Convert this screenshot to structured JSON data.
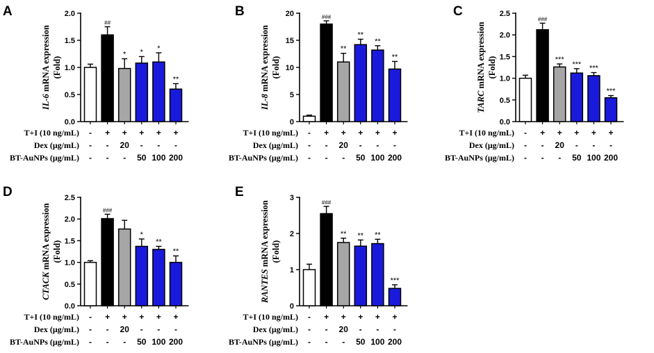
{
  "colors": {
    "control": "#ffffff",
    "model": "#000000",
    "dex": "#a6a6a6",
    "treatment": "#1a1adc",
    "axis": "#000000"
  },
  "treatment_row_labels": [
    "T+I (10 ng/mL)",
    "Dex (μg/mL)",
    "BT-AuNPs (μg/mL)"
  ],
  "treatment_table": [
    [
      "-",
      "+",
      "+",
      "+",
      "+",
      "+"
    ],
    [
      "-",
      "-",
      "20",
      "-",
      "-",
      "-"
    ],
    [
      "-",
      "-",
      "-",
      "50",
      "100",
      "200"
    ]
  ],
  "chart_data": [
    {
      "type": "bar",
      "panel": "A",
      "title": "",
      "ylabel_gene": "IL-6",
      "ylabel_rest": " mRNA expression",
      "ylabel_unit": "(Fold)",
      "ylim": [
        0,
        2.0
      ],
      "yticks": [
        "0.0",
        "0.5",
        "1.0",
        "1.5",
        "2.0"
      ],
      "values": [
        1.0,
        1.6,
        0.98,
        1.08,
        1.1,
        0.6
      ],
      "errors": [
        0.06,
        0.15,
        0.18,
        0.12,
        0.17,
        0.1
      ],
      "annotations": [
        "",
        "##",
        "*",
        "*",
        "*",
        "**"
      ]
    },
    {
      "type": "bar",
      "panel": "B",
      "title": "",
      "ylabel_gene": "IL-8",
      "ylabel_rest": " mRNA expression",
      "ylabel_unit": "(Fold)",
      "ylim": [
        0,
        20
      ],
      "yticks": [
        "0",
        "5",
        "10",
        "15",
        "20"
      ],
      "values": [
        1.0,
        18.0,
        11.0,
        14.2,
        13.2,
        9.7
      ],
      "errors": [
        0.2,
        0.6,
        1.6,
        1.0,
        0.8,
        1.4
      ],
      "annotations": [
        "",
        "###",
        "**",
        "**",
        "**",
        "**"
      ]
    },
    {
      "type": "bar",
      "panel": "C",
      "title": "",
      "ylabel_gene": "TARC",
      "ylabel_rest": " mRNA expression",
      "ylabel_unit": "(Fold)",
      "ylim": [
        0,
        2.5
      ],
      "yticks": [
        "0.0",
        "0.5",
        "1.0",
        "1.5",
        "2.0",
        "2.5"
      ],
      "values": [
        1.0,
        2.12,
        1.26,
        1.12,
        1.06,
        0.55
      ],
      "errors": [
        0.07,
        0.15,
        0.07,
        0.1,
        0.07,
        0.05
      ],
      "annotations": [
        "",
        "###",
        "***",
        "***",
        "***",
        "***"
      ]
    },
    {
      "type": "bar",
      "panel": "D",
      "title": "",
      "ylabel_gene": "CTACK",
      "ylabel_rest": " mRNA expression",
      "ylabel_unit": "(Fold)",
      "ylim": [
        0,
        2.5
      ],
      "yticks": [
        "0.0",
        "0.5",
        "1.0",
        "1.5",
        "2.0",
        "2.5"
      ],
      "values": [
        1.0,
        2.01,
        1.77,
        1.37,
        1.3,
        1.0
      ],
      "errors": [
        0.04,
        0.1,
        0.2,
        0.17,
        0.07,
        0.15
      ],
      "annotations": [
        "",
        "###",
        "",
        "*",
        "**",
        "**"
      ]
    },
    {
      "type": "bar",
      "panel": "E",
      "title": "",
      "ylabel_gene": "RANTES",
      "ylabel_rest": " mRNA expression",
      "ylabel_unit": "(Fold)",
      "ylim": [
        0,
        3
      ],
      "yticks": [
        "0",
        "1",
        "2",
        "3"
      ],
      "values": [
        1.0,
        2.55,
        1.75,
        1.65,
        1.72,
        0.48
      ],
      "errors": [
        0.15,
        0.2,
        0.12,
        0.17,
        0.12,
        0.1
      ],
      "annotations": [
        "",
        "###",
        "**",
        "**",
        "**",
        "***"
      ]
    }
  ]
}
